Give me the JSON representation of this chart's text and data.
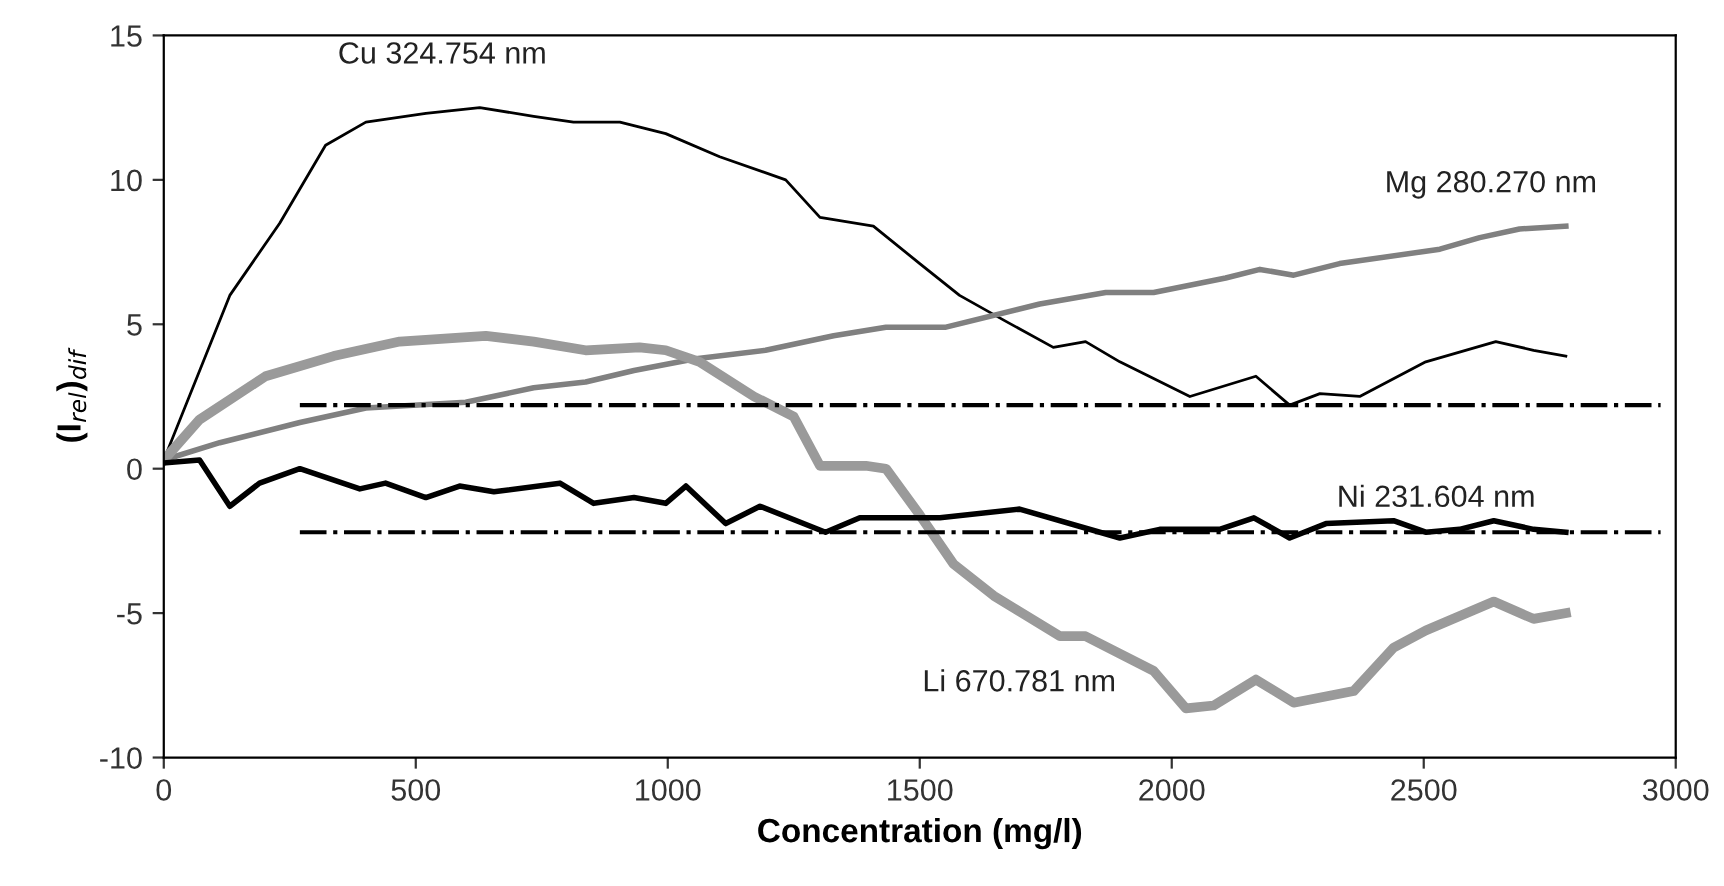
{
  "chart_data": {
    "type": "line",
    "xlabel": "Concentration (mg/l)",
    "ylabel": "(I$_{rel}$)$_{dif}$",
    "xlim": [
      0,
      3000
    ],
    "xticks": [
      0,
      500,
      1000,
      1500,
      2000,
      2500,
      3000
    ],
    "ylim": [
      -10,
      15
    ],
    "yticks": [
      -10,
      -5,
      0,
      5,
      10,
      15
    ],
    "grid": false,
    "legend": false,
    "marker": "none",
    "series": [
      {
        "name": "Cu 324.754 nm",
        "color": "#000000",
        "x": [
          0,
          131,
          230,
          321,
          401,
          520,
          627,
          734,
          813,
          905,
          996,
          1103,
          1234,
          1302,
          1408,
          1500,
          1579,
          1671,
          1765,
          1829,
          1897,
          2036,
          2167,
          2234,
          2294,
          2373,
          2504,
          2643,
          2718,
          2782
        ],
        "values": [
          0.3,
          6.0,
          8.5,
          11.2,
          12.0,
          12.3,
          12.5,
          12.2,
          12.0,
          12.0,
          11.6,
          10.8,
          10.0,
          8.7,
          8.4,
          7.1,
          6.0,
          5.1,
          4.2,
          4.4,
          3.7,
          2.5,
          3.2,
          2.2,
          2.6,
          2.5,
          3.7,
          4.4,
          4.1,
          3.9
        ]
      },
      {
        "name": "Mg 280.270 nm",
        "color": "#808080",
        "x": [
          0,
          111,
          270,
          401,
          599,
          734,
          837,
          933,
          1052,
          1194,
          1329,
          1433,
          1552,
          1738,
          1869,
          1964,
          2107,
          2175,
          2242,
          2333,
          2532,
          2611,
          2690,
          2782
        ],
        "values": [
          0.3,
          0.9,
          1.6,
          2.1,
          2.3,
          2.8,
          3.0,
          3.4,
          3.8,
          4.1,
          4.6,
          4.9,
          4.9,
          5.7,
          6.1,
          6.1,
          6.6,
          6.9,
          6.7,
          7.1,
          7.6,
          8.0,
          8.3,
          8.4
        ]
      },
      {
        "name": "Li 670.781 nm",
        "color": "#9a9a9a",
        "x": [
          0,
          71,
          202,
          337,
          468,
          639,
          734,
          837,
          944,
          996,
          1063,
          1171,
          1250,
          1302,
          1393,
          1433,
          1500,
          1567,
          1647,
          1778,
          1829,
          1964,
          2028,
          2083,
          2167,
          2242,
          2361,
          2440,
          2504,
          2639,
          2718,
          2782
        ],
        "values": [
          0.3,
          1.7,
          3.2,
          3.9,
          4.4,
          4.6,
          4.4,
          4.1,
          4.2,
          4.1,
          3.7,
          2.5,
          1.8,
          0.1,
          0.1,
          0,
          -1.6,
          -3.3,
          -4.4,
          -5.8,
          -5.8,
          -7.0,
          -8.3,
          -8.2,
          -7.3,
          -8.1,
          -7.7,
          -6.2,
          -5.6,
          -4.6,
          -5.2,
          -5.0
        ]
      },
      {
        "name": "Ni 231.604 nm",
        "color": "#000000",
        "x": [
          0,
          71,
          131,
          190,
          270,
          389,
          440,
          520,
          587,
          655,
          786,
          853,
          933,
          996,
          1036,
          1115,
          1183,
          1313,
          1381,
          1421,
          1540,
          1698,
          1897,
          1976,
          2095,
          2163,
          2234,
          2306,
          2440,
          2504,
          2571,
          2639,
          2718,
          2782
        ],
        "values": [
          0.2,
          0.3,
          -1.3,
          -0.5,
          0,
          -0.7,
          -0.5,
          -1.0,
          -0.6,
          -0.8,
          -0.5,
          -1.2,
          -1.0,
          -1.2,
          -0.6,
          -1.9,
          -1.3,
          -2.2,
          -1.7,
          -1.7,
          -1.7,
          -1.4,
          -2.4,
          -2.1,
          -2.1,
          -1.7,
          -2.4,
          -1.9,
          -1.8,
          -2.2,
          -2.1,
          -1.8,
          -2.1,
          -2.2
        ]
      },
      {
        "color": "#000000",
        "line_style": "dashdot",
        "x": [
          270,
          2970
        ],
        "values": [
          2.2,
          2.2
        ]
      },
      {
        "color": "#000000",
        "line_style": "dashdot",
        "x": [
          270,
          2970
        ],
        "values": [
          -2.2,
          -2.2
        ]
      }
    ]
  }
}
